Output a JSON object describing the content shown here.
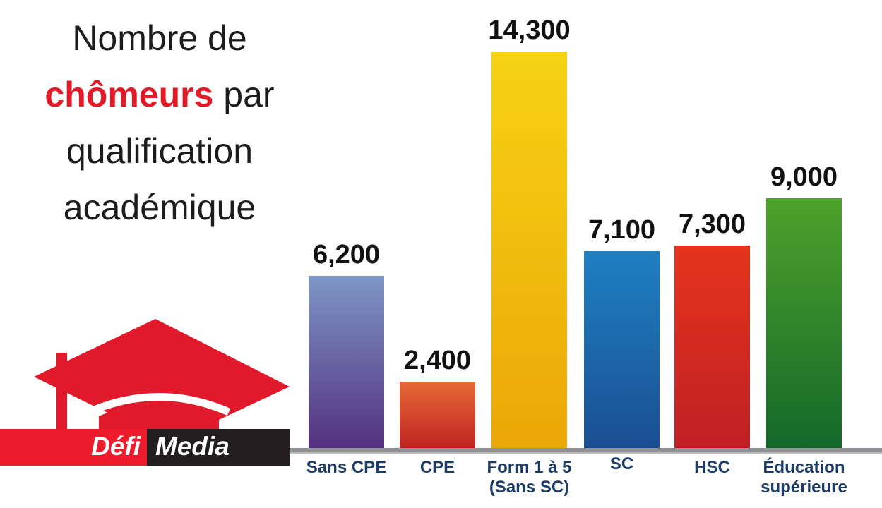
{
  "title": {
    "line1": "Nombre de",
    "highlight": "chômeurs",
    "line2_rest": " par",
    "line3": "qualification",
    "line4": "académique",
    "text_color": "#1c1c1c",
    "highlight_color": "#e11a27"
  },
  "logo": {
    "icon": "graduation-cap-icon",
    "brand_left": "Défi",
    "brand_right": "Media",
    "cap_color": "#e01a2b",
    "banner_red": "#ed1c2c",
    "banner_dark": "#231f20"
  },
  "chart_data": {
    "type": "bar",
    "title": "Nombre de chômeurs par qualification académique",
    "categories": [
      "Sans CPE",
      "CPE",
      "Form 1 à 5\n(Sans SC)",
      "SC",
      "HSC",
      "Éducation\nsupérieure"
    ],
    "values": [
      6200,
      2400,
      14300,
      7100,
      7300,
      9000
    ],
    "value_labels": [
      "6,200",
      "2,400",
      "14,300",
      "7,100",
      "7,300",
      "9,000"
    ],
    "bar_gradients": [
      [
        "#7e96c6",
        "#53317e"
      ],
      [
        "#e66a38",
        "#bf2420"
      ],
      [
        "#f6d214",
        "#eba708"
      ],
      [
        "#1e80c2",
        "#1a4f92"
      ],
      [
        "#e5341c",
        "#bf2025"
      ],
      [
        "#4da22b",
        "#15682a"
      ]
    ],
    "ylim": [
      0,
      14300
    ],
    "grid": false,
    "legend": false,
    "xlabel": "",
    "ylabel": "",
    "value_label_color": "#111111",
    "category_label_color": "#1b3c67",
    "baseline_dark_color": "#8f9194",
    "baseline_light_color": "#b7b9bb"
  }
}
